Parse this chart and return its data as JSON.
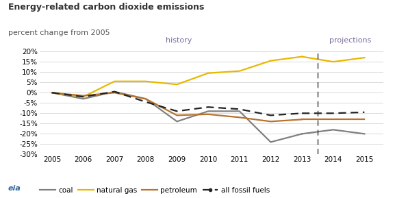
{
  "title": "Energy-related carbon dioxide emissions",
  "subtitle": "percent change from 2005",
  "history_years": [
    2005,
    2006,
    2007,
    2008,
    2009,
    2010,
    2011,
    2012,
    2013
  ],
  "coal_hist": [
    0,
    -3,
    0.5,
    -3,
    -14,
    -9,
    -9,
    -24,
    -20
  ],
  "natural_gas_hist": [
    0,
    -2,
    5.5,
    5.5,
    4,
    9.5,
    10.5,
    15.5,
    17.5
  ],
  "petroleum_hist": [
    0,
    -1.5,
    0,
    -3,
    -11,
    -10.5,
    -12,
    -14,
    -13
  ],
  "all_fossil_hist": [
    0,
    -2,
    0.5,
    -4.5,
    -9,
    -7,
    -8,
    -11,
    -10
  ],
  "proj_years": [
    2013,
    2014,
    2015
  ],
  "coal_proj": [
    -20,
    -18,
    -20
  ],
  "natural_gas_proj": [
    17.5,
    15,
    17
  ],
  "petroleum_proj": [
    -13,
    -13,
    -13
  ],
  "all_fossil_proj": [
    -10,
    -10,
    -9.5
  ],
  "divider_x": 2013.5,
  "xlim": [
    2004.6,
    2015.6
  ],
  "xticks": [
    2005,
    2006,
    2007,
    2008,
    2009,
    2010,
    2011,
    2012,
    2013,
    2014,
    2015
  ],
  "ylim": [
    -30,
    20
  ],
  "yticks": [
    -30,
    -25,
    -20,
    -15,
    -10,
    -5,
    0,
    5,
    10,
    15,
    20
  ],
  "coal_color": "#808080",
  "natural_gas_color": "#E8B800",
  "petroleum_color": "#B8722A",
  "all_fossil_color": "#222222",
  "label_color": "#7B6FA0",
  "title_color": "#333333",
  "subtitle_color": "#555555",
  "background_color": "#FFFFFF",
  "grid_color": "#CCCCCC",
  "history_label": "history",
  "projections_label": "projections"
}
